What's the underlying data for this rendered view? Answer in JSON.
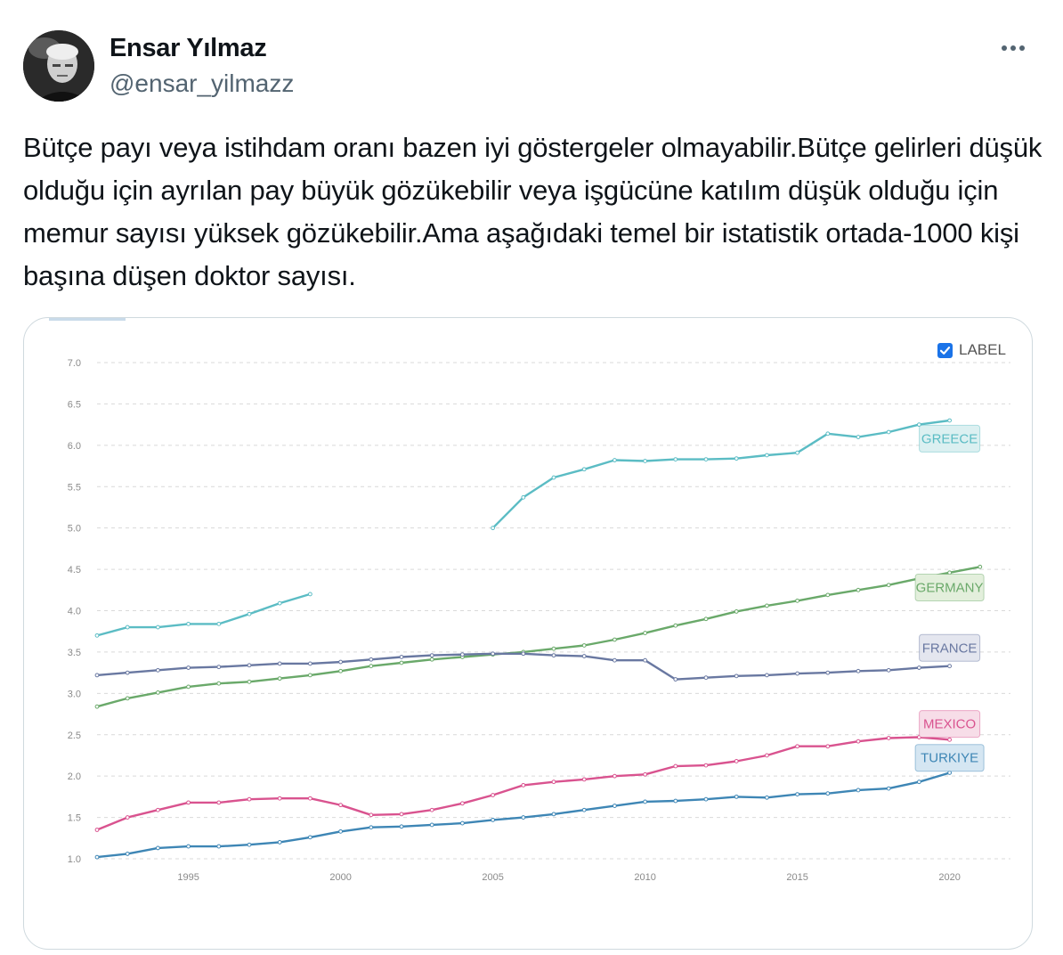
{
  "tweet": {
    "author_name": "Ensar Yılmaz",
    "author_handle": "@ensar_yilmazz",
    "text": "Bütçe payı veya istihdam oranı bazen iyi göstergeler olmayabilir.Bütçe gelirleri düşük olduğu için ayrılan pay büyük gözükebilir veya işgücüne katılım düşük olduğu için memur sayısı yüksek gözükebilir.Ama aşağıdaki temel bir istatistik ortada-1000 kişi başına düşen doktor sayısı.",
    "more_icon": "more-horizontal-icon"
  },
  "chart_controls": {
    "label_toggle": "LABEL",
    "label_checked": true
  },
  "chart_data": {
    "type": "line",
    "title": "",
    "xlabel": "",
    "ylabel": "",
    "xlim": [
      1992,
      2021
    ],
    "ylim": [
      1.0,
      7.0
    ],
    "x_ticks": [
      1995,
      2000,
      2005,
      2010,
      2015,
      2020
    ],
    "y_ticks": [
      "1.0",
      "1.5",
      "2.0",
      "2.5",
      "3.0",
      "3.5",
      "4.0",
      "4.5",
      "5.0",
      "5.5",
      "6.0",
      "6.5",
      "7.0"
    ],
    "grid": "horizontal-dashed",
    "legend": "inline-labels-right",
    "series": [
      {
        "name": "GREECE",
        "color": "#5bbcc4",
        "label_fill": "#dcf0f1",
        "label_at": [
          2020,
          6.08
        ],
        "segments": [
          [
            [
              1992,
              3.7
            ],
            [
              1993,
              3.8
            ],
            [
              1994,
              3.8
            ],
            [
              1995,
              3.84
            ],
            [
              1996,
              3.84
            ],
            [
              1997,
              3.96
            ],
            [
              1998,
              4.09
            ],
            [
              1999,
              4.2
            ]
          ],
          [
            [
              2005,
              5.0
            ],
            [
              2006,
              5.37
            ],
            [
              2007,
              5.61
            ],
            [
              2008,
              5.71
            ],
            [
              2009,
              5.82
            ],
            [
              2010,
              5.81
            ],
            [
              2011,
              5.83
            ],
            [
              2012,
              5.83
            ],
            [
              2013,
              5.84
            ],
            [
              2014,
              5.88
            ],
            [
              2015,
              5.91
            ],
            [
              2016,
              6.14
            ],
            [
              2017,
              6.1
            ],
            [
              2018,
              6.16
            ],
            [
              2019,
              6.25
            ],
            [
              2020,
              6.3
            ]
          ]
        ]
      },
      {
        "name": "GERMANY",
        "color": "#6aa96a",
        "label_fill": "#e3efdc",
        "label_at": [
          2020,
          4.28
        ],
        "segments": [
          [
            [
              1992,
              2.84
            ],
            [
              1993,
              2.94
            ],
            [
              1994,
              3.01
            ],
            [
              1995,
              3.08
            ],
            [
              1996,
              3.12
            ],
            [
              1997,
              3.14
            ],
            [
              1998,
              3.18
            ],
            [
              1999,
              3.22
            ],
            [
              2000,
              3.27
            ],
            [
              2001,
              3.33
            ],
            [
              2002,
              3.37
            ],
            [
              2003,
              3.41
            ],
            [
              2004,
              3.44
            ],
            [
              2005,
              3.47
            ],
            [
              2006,
              3.5
            ],
            [
              2007,
              3.54
            ],
            [
              2008,
              3.58
            ],
            [
              2009,
              3.65
            ],
            [
              2010,
              3.73
            ],
            [
              2011,
              3.82
            ],
            [
              2012,
              3.9
            ],
            [
              2013,
              3.99
            ],
            [
              2014,
              4.06
            ],
            [
              2015,
              4.12
            ],
            [
              2016,
              4.19
            ],
            [
              2017,
              4.25
            ],
            [
              2018,
              4.31
            ],
            [
              2019,
              4.39
            ],
            [
              2020,
              4.46
            ],
            [
              2021,
              4.53
            ]
          ]
        ]
      },
      {
        "name": "FRANCE",
        "color": "#6978a1",
        "label_fill": "#e4e6ef",
        "label_at": [
          2020,
          3.55
        ],
        "segments": [
          [
            [
              1992,
              3.22
            ],
            [
              1993,
              3.25
            ],
            [
              1994,
              3.28
            ],
            [
              1995,
              3.31
            ],
            [
              1996,
              3.32
            ],
            [
              1997,
              3.34
            ],
            [
              1998,
              3.36
            ],
            [
              1999,
              3.36
            ],
            [
              2000,
              3.38
            ],
            [
              2001,
              3.41
            ],
            [
              2002,
              3.44
            ],
            [
              2003,
              3.46
            ],
            [
              2004,
              3.47
            ],
            [
              2005,
              3.48
            ],
            [
              2006,
              3.48
            ],
            [
              2007,
              3.46
            ],
            [
              2008,
              3.45
            ],
            [
              2009,
              3.4
            ],
            [
              2010,
              3.4
            ],
            [
              2011,
              3.17
            ],
            [
              2012,
              3.19
            ],
            [
              2013,
              3.21
            ],
            [
              2014,
              3.22
            ],
            [
              2015,
              3.24
            ],
            [
              2016,
              3.25
            ],
            [
              2017,
              3.27
            ],
            [
              2018,
              3.28
            ],
            [
              2019,
              3.31
            ],
            [
              2020,
              3.33
            ]
          ]
        ]
      },
      {
        "name": "MEXICO",
        "color": "#d9538f",
        "label_fill": "#f7dde8",
        "label_at": [
          2020,
          2.63
        ],
        "segments": [
          [
            [
              1992,
              1.35
            ],
            [
              1993,
              1.5
            ],
            [
              1994,
              1.59
            ],
            [
              1995,
              1.68
            ],
            [
              1996,
              1.68
            ],
            [
              1997,
              1.72
            ],
            [
              1998,
              1.73
            ],
            [
              1999,
              1.73
            ],
            [
              2000,
              1.65
            ],
            [
              2001,
              1.53
            ],
            [
              2002,
              1.54
            ],
            [
              2003,
              1.59
            ],
            [
              2004,
              1.67
            ],
            [
              2005,
              1.77
            ],
            [
              2006,
              1.89
            ],
            [
              2007,
              1.93
            ],
            [
              2008,
              1.96
            ],
            [
              2009,
              2.0
            ],
            [
              2010,
              2.02
            ],
            [
              2011,
              2.12
            ],
            [
              2012,
              2.13
            ],
            [
              2013,
              2.18
            ],
            [
              2014,
              2.25
            ],
            [
              2015,
              2.36
            ],
            [
              2016,
              2.36
            ],
            [
              2017,
              2.42
            ],
            [
              2018,
              2.46
            ],
            [
              2019,
              2.47
            ],
            [
              2020,
              2.44
            ]
          ]
        ]
      },
      {
        "name": "TURKIYE",
        "color": "#3e86b5",
        "label_fill": "#d5e6f2",
        "label_at": [
          2020,
          2.22
        ],
        "segments": [
          [
            [
              1992,
              1.02
            ],
            [
              1993,
              1.06
            ],
            [
              1994,
              1.13
            ],
            [
              1995,
              1.15
            ],
            [
              1996,
              1.15
            ],
            [
              1997,
              1.17
            ],
            [
              1998,
              1.2
            ],
            [
              1999,
              1.26
            ],
            [
              2000,
              1.33
            ],
            [
              2001,
              1.38
            ],
            [
              2002,
              1.39
            ],
            [
              2003,
              1.41
            ],
            [
              2004,
              1.43
            ],
            [
              2005,
              1.47
            ],
            [
              2006,
              1.5
            ],
            [
              2007,
              1.54
            ],
            [
              2008,
              1.59
            ],
            [
              2009,
              1.64
            ],
            [
              2010,
              1.69
            ],
            [
              2011,
              1.7
            ],
            [
              2012,
              1.72
            ],
            [
              2013,
              1.75
            ],
            [
              2014,
              1.74
            ],
            [
              2015,
              1.78
            ],
            [
              2016,
              1.79
            ],
            [
              2017,
              1.83
            ],
            [
              2018,
              1.85
            ],
            [
              2019,
              1.93
            ],
            [
              2020,
              2.04
            ]
          ]
        ]
      }
    ]
  }
}
